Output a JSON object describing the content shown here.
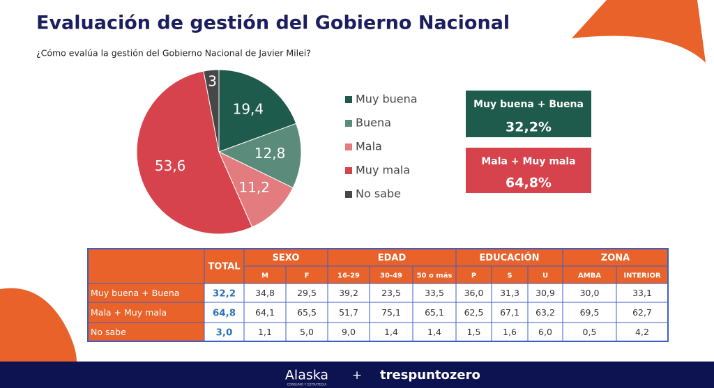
{
  "header": {
    "title": "Evaluación de gestión del Gobierno Nacional",
    "subtitle": "¿Cómo evalúa la gestión del Gobierno Nacional de Javier Milei?"
  },
  "chart_data": {
    "type": "pie",
    "categories": [
      "Muy buena",
      "Buena",
      "Mala",
      "Muy mala",
      "No sabe"
    ],
    "values": [
      19.4,
      12.8,
      11.2,
      53.6,
      3
    ],
    "value_labels": [
      "19,4",
      "12,8",
      "11,2",
      "53,6",
      "3"
    ],
    "colors": [
      "#1f5b4c",
      "#5b8b7b",
      "#e27c7f",
      "#d7434c",
      "#474747"
    ],
    "legend": "right"
  },
  "summary": [
    {
      "label": "Muy buena + Buena",
      "value": "32,2%",
      "color": "#1f5b4c"
    },
    {
      "label": "Mala + Muy mala",
      "value": "64,8%",
      "color": "#d7434c"
    }
  ],
  "table": {
    "total": "TOTAL",
    "groups": [
      {
        "label": "SEXO",
        "columns": [
          "M",
          "F"
        ]
      },
      {
        "label": "EDAD",
        "columns": [
          "16-29",
          "30-49",
          "50 o más"
        ]
      },
      {
        "label": "EDUCACIÓN",
        "columns": [
          "P",
          "S",
          "U"
        ]
      },
      {
        "label": "ZONA",
        "columns": [
          "AMBA",
          "INTERIOR"
        ]
      }
    ],
    "rows": [
      {
        "label": "Muy buena + Buena",
        "values": [
          "32,2",
          "34,8",
          "29,5",
          "39,2",
          "23,5",
          "33,5",
          "36,0",
          "31,3",
          "30,9",
          "30,0",
          "33,1"
        ]
      },
      {
        "label": "Mala + Muy mala",
        "values": [
          "64,8",
          "64,1",
          "65,5",
          "51,7",
          "75,1",
          "65,1",
          "62,5",
          "67,1",
          "63,2",
          "69,5",
          "62,7"
        ]
      },
      {
        "label": "No sabe",
        "values": [
          "3,0",
          "1,1",
          "5,0",
          "9,0",
          "1,4",
          "1,4",
          "1,5",
          "1,6",
          "6,0",
          "0,5",
          "4,2"
        ]
      }
    ]
  },
  "footer": {
    "brand1": "Alaska",
    "brand1_tagline": "CONSUMO Y ESTRATEGIA",
    "plus": "+",
    "brand2": "trespuntozero"
  }
}
